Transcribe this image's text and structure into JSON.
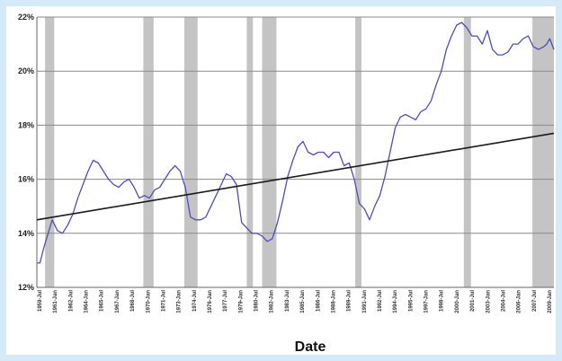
{
  "chart_data": {
    "type": "line",
    "title": "",
    "xlabel": "Date",
    "ylabel": "",
    "ylim": [
      12,
      22
    ],
    "y_tick_labels": [
      "12%",
      "14%",
      "16%",
      "18%",
      "20%",
      "22%"
    ],
    "x_range": [
      1959.5,
      2010.0
    ],
    "grid": true,
    "legend": "none",
    "colors": {
      "series": "#4e4eb8",
      "trend": "#1a1a1a",
      "recession": "#c4c4c4",
      "grid": "#8a8a8a"
    },
    "x_tick_labels": [
      "1959-Jul",
      "1961-Jan",
      "1962-Jul",
      "1964-Jan",
      "1965-Jul",
      "1967-Jan",
      "1968-Jul",
      "1970-Jan",
      "1971-Jul",
      "1973-Jan",
      "1974-Jul",
      "1976-Jan",
      "1977-Jul",
      "1979-Jan",
      "1980-Jul",
      "1982-Jan",
      "1983-Jul",
      "1985-Jan",
      "1986-Jul",
      "1988-Jan",
      "1989-Jul",
      "1991-Jan",
      "1992-Jul",
      "1994-Jan",
      "1995-Jul",
      "1997-Jan",
      "1998-Jul",
      "2000-Jan",
      "2001-Jul",
      "2003-Jan",
      "2004-Jul",
      "2006-Jan",
      "2007-Jul",
      "2009-Jan"
    ],
    "recessions": [
      [
        1960.3,
        1961.2
      ],
      [
        1969.9,
        1970.9
      ],
      [
        1973.9,
        1975.2
      ],
      [
        1980.0,
        1980.6
      ],
      [
        1981.5,
        1982.9
      ],
      [
        1990.6,
        1991.2
      ],
      [
        2001.2,
        2001.9
      ],
      [
        2007.9,
        2010.0
      ]
    ],
    "series": [
      {
        "x": [
          1959.5,
          1959.8,
          1960.2,
          1960.6,
          1961.0,
          1961.5,
          1962.0,
          1962.5,
          1963.0,
          1963.5,
          1964.0,
          1964.5,
          1965.0,
          1965.5,
          1966.0,
          1966.5,
          1967.0,
          1967.5,
          1968.0,
          1968.5,
          1969.0,
          1969.5,
          1970.0,
          1970.5,
          1971.0,
          1971.5,
          1972.0,
          1972.5,
          1973.0,
          1973.5,
          1974.0,
          1974.5,
          1975.0,
          1975.5,
          1976.0,
          1976.5,
          1977.0,
          1977.5,
          1978.0,
          1978.5,
          1979.0,
          1979.5,
          1980.0,
          1980.5,
          1981.0,
          1981.5,
          1982.0,
          1982.5,
          1983.0,
          1983.5,
          1984.0,
          1984.5,
          1985.0,
          1985.5,
          1986.0,
          1986.5,
          1987.0,
          1987.5,
          1988.0,
          1988.5,
          1989.0,
          1989.5,
          1990.0,
          1990.5,
          1991.0,
          1991.5,
          1992.0,
          1992.5,
          1993.0,
          1993.5,
          1994.0,
          1994.5,
          1995.0,
          1995.5,
          1996.0,
          1996.5,
          1997.0,
          1997.5,
          1998.0,
          1998.5,
          1999.0,
          1999.5,
          2000.0,
          2000.5,
          2001.0,
          2001.5,
          2002.0,
          2002.5,
          2003.0,
          2003.5,
          2004.0,
          2004.5,
          2005.0,
          2005.5,
          2006.0,
          2006.5,
          2007.0,
          2007.5,
          2008.0,
          2008.5,
          2009.0,
          2009.3,
          2009.6,
          2010.0
        ],
        "values": [
          12.9,
          12.9,
          13.5,
          14.0,
          14.5,
          14.1,
          14.0,
          14.3,
          14.7,
          15.3,
          15.8,
          16.3,
          16.7,
          16.6,
          16.3,
          16.0,
          15.8,
          15.7,
          15.9,
          16.0,
          15.7,
          15.3,
          15.4,
          15.3,
          15.6,
          15.7,
          16.0,
          16.3,
          16.5,
          16.3,
          15.7,
          14.6,
          14.5,
          14.5,
          14.6,
          15.0,
          15.4,
          15.8,
          16.2,
          16.1,
          15.8,
          14.4,
          14.2,
          14.0,
          14.0,
          13.9,
          13.7,
          13.8,
          14.4,
          15.2,
          16.1,
          16.7,
          17.2,
          17.4,
          17.0,
          16.9,
          17.0,
          17.0,
          16.8,
          17.0,
          17.0,
          16.5,
          16.6,
          16.0,
          15.1,
          14.9,
          14.5,
          15.0,
          15.4,
          16.1,
          17.0,
          17.9,
          18.3,
          18.4,
          18.3,
          18.2,
          18.5,
          18.6,
          18.9,
          19.5,
          20.0,
          20.8,
          21.3,
          21.7,
          21.8,
          21.6,
          21.3,
          21.3,
          21.0,
          21.5,
          20.8,
          20.6,
          20.6,
          20.7,
          21.0,
          21.0,
          21.2,
          21.3,
          20.9,
          20.8,
          20.9,
          21.0,
          21.2,
          20.8
        ]
      },
      {
        "x": [
          1959.5,
          2010.0
        ],
        "values": [
          14.5,
          17.7
        ]
      }
    ]
  }
}
